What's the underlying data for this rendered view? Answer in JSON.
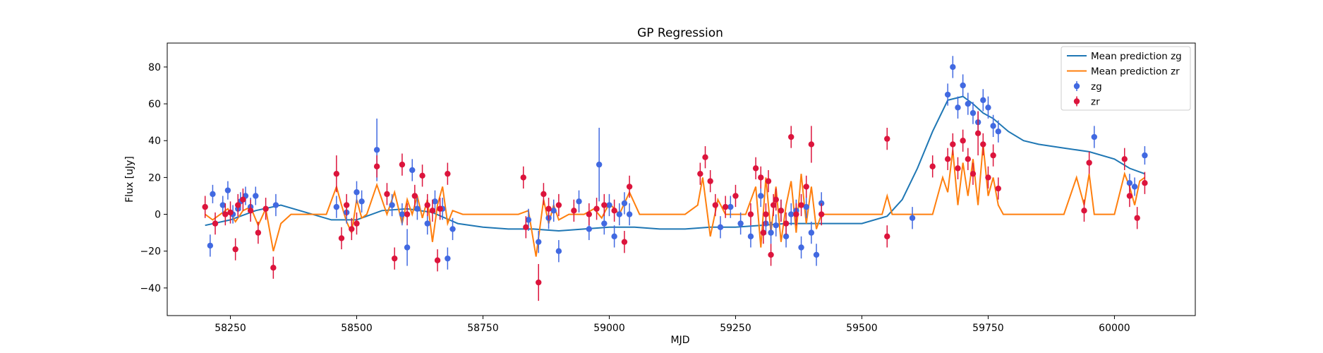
{
  "chart_data": {
    "type": "scatter",
    "title": "GP Regression",
    "xlabel": "MJD",
    "ylabel": "Flux [uJy]",
    "xlim": [
      58125,
      60160
    ],
    "ylim": [
      -55,
      93
    ],
    "xticks": [
      58250,
      58500,
      58750,
      59000,
      59250,
      59500,
      59750,
      60000
    ],
    "xtick_labels": [
      "58250",
      "58500",
      "58750",
      "59000",
      "59250",
      "59500",
      "59750",
      "60000"
    ],
    "yticks": [
      -40,
      -20,
      0,
      20,
      40,
      60,
      80
    ],
    "ytick_labels": [
      "−40",
      "−20",
      "0",
      "20",
      "40",
      "60",
      "80"
    ],
    "grid": false,
    "legend_placement": "top-right",
    "legend": [
      {
        "label": "Mean prediction zg",
        "kind": "line",
        "color": "#1f77b4"
      },
      {
        "label": "Mean prediction zr",
        "kind": "line",
        "color": "#ff7f0e"
      },
      {
        "label": "zg",
        "kind": "errorbar",
        "color": "#4169e1"
      },
      {
        "label": "zr",
        "kind": "errorbar",
        "color": "#dc143c"
      }
    ],
    "series": [
      {
        "name": "Mean prediction zg",
        "kind": "line",
        "color": "#1f77b4",
        "x": [
          58200,
          58250,
          58300,
          58350,
          58400,
          58450,
          58500,
          58550,
          58600,
          58650,
          58700,
          58750,
          58800,
          58850,
          58900,
          58950,
          59000,
          59050,
          59100,
          59150,
          59200,
          59250,
          59300,
          59350,
          59400,
          59450,
          59500,
          59550,
          59580,
          59610,
          59640,
          59670,
          59700,
          59720,
          59740,
          59760,
          59790,
          59820,
          59850,
          59900,
          59950,
          60000,
          60030,
          60060
        ],
        "y": [
          -6,
          -3,
          2,
          5,
          1,
          -3,
          -3,
          2,
          3,
          1,
          -5,
          -7,
          -8,
          -8,
          -9,
          -8,
          -7,
          -7,
          -8,
          -8,
          -7,
          -7,
          -6,
          -5,
          -5,
          -5,
          -5,
          -1,
          8,
          25,
          45,
          62,
          64,
          60,
          55,
          52,
          45,
          40,
          38,
          36,
          34,
          30,
          25,
          22
        ]
      },
      {
        "name": "Mean prediction zr",
        "kind": "line",
        "color": "#ff7f0e",
        "x": [
          58200,
          58215,
          58230,
          58245,
          58260,
          58275,
          58290,
          58305,
          58320,
          58335,
          58350,
          58370,
          58390,
          58410,
          58440,
          58460,
          58470,
          58480,
          58490,
          58500,
          58510,
          58520,
          58540,
          58550,
          58560,
          58575,
          58590,
          58600,
          58610,
          58620,
          58630,
          58640,
          58650,
          58660,
          58670,
          58680,
          58690,
          58710,
          58730,
          58760,
          58790,
          58820,
          58840,
          58855,
          58870,
          58880,
          58890,
          58900,
          58920,
          58950,
          58970,
          58985,
          59000,
          59020,
          59040,
          59060,
          59100,
          59150,
          59175,
          59185,
          59200,
          59215,
          59230,
          59250,
          59270,
          59290,
          59300,
          59310,
          59320,
          59330,
          59340,
          59350,
          59360,
          59370,
          59380,
          59390,
          59400,
          59410,
          59420,
          59440,
          59480,
          59520,
          59540,
          59550,
          59560,
          59580,
          59600,
          59620,
          59640,
          59660,
          59670,
          59680,
          59690,
          59700,
          59710,
          59720,
          59730,
          59740,
          59750,
          59760,
          59770,
          59780,
          59800,
          59850,
          59900,
          59925,
          59940,
          59950,
          59960,
          59980,
          60000,
          60020,
          60030,
          60040,
          60050,
          60060
        ],
        "y": [
          0,
          -3,
          0,
          3,
          -4,
          2,
          4,
          -6,
          3,
          -20,
          -5,
          0,
          0,
          0,
          0,
          15,
          5,
          -4,
          -10,
          8,
          -2,
          0,
          16,
          8,
          0,
          12,
          -5,
          8,
          0,
          10,
          -2,
          8,
          -15,
          5,
          15,
          -5,
          2,
          0,
          0,
          0,
          0,
          0,
          2,
          -23,
          8,
          -5,
          5,
          -3,
          0,
          0,
          3,
          -2,
          6,
          0,
          12,
          0,
          0,
          0,
          5,
          20,
          -12,
          8,
          0,
          0,
          0,
          15,
          -18,
          20,
          -10,
          15,
          -15,
          5,
          18,
          -10,
          22,
          -5,
          15,
          -8,
          0,
          0,
          0,
          0,
          0,
          10,
          0,
          0,
          0,
          0,
          0,
          20,
          12,
          35,
          5,
          28,
          10,
          30,
          5,
          38,
          10,
          20,
          5,
          0,
          0,
          0,
          0,
          20,
          5,
          22,
          0,
          0,
          0,
          22,
          15,
          5,
          18,
          20
        ]
      },
      {
        "name": "zg",
        "kind": "errorbar",
        "color": "#4169e1",
        "x": [
          58210,
          58215,
          58235,
          58245,
          58255,
          58265,
          58270,
          58280,
          58290,
          58300,
          58340,
          58460,
          58480,
          58500,
          58510,
          58540,
          58570,
          58590,
          58600,
          58610,
          58620,
          58640,
          58655,
          58670,
          58680,
          58690,
          58840,
          58860,
          58880,
          58890,
          58900,
          58940,
          58960,
          58980,
          58990,
          59000,
          59010,
          59020,
          59030,
          59040,
          59220,
          59240,
          59260,
          59280,
          59300,
          59310,
          59320,
          59330,
          59340,
          59350,
          59360,
          59370,
          59380,
          59390,
          59400,
          59410,
          59420,
          59600,
          59670,
          59680,
          59690,
          59700,
          59710,
          59720,
          59730,
          59740,
          59750,
          59760,
          59770,
          59960,
          60030,
          60040,
          60060
        ],
        "y": [
          -17,
          11,
          5,
          13,
          0,
          3,
          7,
          10,
          4,
          10,
          5,
          4,
          1,
          12,
          7,
          35,
          5,
          0,
          -18,
          24,
          3,
          -5,
          7,
          3,
          -24,
          -8,
          -3,
          -15,
          -2,
          2,
          -20,
          7,
          -8,
          27,
          -5,
          5,
          -12,
          0,
          6,
          0,
          -7,
          4,
          -5,
          -12,
          10,
          -5,
          -10,
          -6,
          2,
          -12,
          0,
          2,
          -18,
          4,
          -10,
          -22,
          6,
          -2,
          65,
          80,
          58,
          70,
          60,
          55,
          50,
          62,
          58,
          48,
          45,
          42,
          17,
          15,
          32
        ],
        "err": [
          6,
          5,
          5,
          5,
          5,
          5,
          5,
          5,
          5,
          5,
          6,
          6,
          6,
          6,
          6,
          17,
          6,
          6,
          10,
          6,
          6,
          6,
          6,
          6,
          6,
          6,
          6,
          6,
          6,
          6,
          6,
          6,
          6,
          20,
          6,
          6,
          6,
          6,
          6,
          6,
          6,
          6,
          6,
          6,
          6,
          6,
          6,
          6,
          6,
          6,
          6,
          6,
          6,
          6,
          6,
          6,
          6,
          6,
          6,
          6,
          6,
          6,
          6,
          6,
          6,
          6,
          6,
          6,
          6,
          6,
          5,
          5,
          5
        ]
      },
      {
        "name": "zr",
        "kind": "errorbar",
        "color": "#dc143c",
        "x": [
          58200,
          58220,
          58240,
          58250,
          58260,
          58265,
          58275,
          58290,
          58305,
          58320,
          58335,
          58460,
          58470,
          58480,
          58490,
          58500,
          58540,
          58560,
          58575,
          58590,
          58600,
          58615,
          58630,
          58640,
          58650,
          58660,
          58665,
          58680,
          58830,
          58835,
          58860,
          58870,
          58880,
          58900,
          58930,
          58960,
          58975,
          58990,
          59010,
          59030,
          59040,
          59180,
          59190,
          59200,
          59210,
          59230,
          59250,
          59280,
          59290,
          59300,
          59305,
          59310,
          59315,
          59320,
          59325,
          59330,
          59340,
          59350,
          59360,
          59370,
          59380,
          59390,
          59400,
          59420,
          59550,
          59550,
          59640,
          59670,
          59680,
          59690,
          59700,
          59710,
          59720,
          59730,
          59740,
          59750,
          59760,
          59770,
          59940,
          59950,
          60020,
          60030,
          60045,
          60060
        ],
        "y": [
          4,
          -5,
          0,
          1,
          -19,
          5,
          8,
          2,
          -10,
          3,
          -29,
          22,
          -13,
          5,
          -8,
          -5,
          26,
          11,
          -24,
          27,
          0,
          10,
          21,
          5,
          2,
          -25,
          3,
          22,
          20,
          -7,
          -37,
          11,
          3,
          5,
          2,
          0,
          3,
          5,
          2,
          -15,
          15,
          22,
          31,
          18,
          5,
          4,
          10,
          0,
          25,
          20,
          -10,
          0,
          18,
          -22,
          5,
          8,
          2,
          -5,
          42,
          0,
          5,
          15,
          38,
          0,
          41,
          -12,
          26,
          30,
          38,
          25,
          40,
          30,
          22,
          44,
          38,
          20,
          32,
          14,
          2,
          28,
          30,
          10,
          -2,
          17
        ],
        "err": [
          6,
          6,
          6,
          6,
          6,
          6,
          6,
          6,
          6,
          6,
          6,
          10,
          6,
          6,
          6,
          6,
          6,
          6,
          6,
          6,
          6,
          6,
          6,
          6,
          6,
          6,
          6,
          6,
          6,
          6,
          10,
          6,
          6,
          6,
          6,
          6,
          6,
          6,
          6,
          6,
          6,
          6,
          6,
          6,
          6,
          6,
          6,
          6,
          6,
          6,
          6,
          6,
          6,
          6,
          6,
          6,
          6,
          6,
          6,
          6,
          6,
          6,
          10,
          6,
          6,
          6,
          6,
          6,
          6,
          6,
          6,
          6,
          6,
          12,
          6,
          6,
          6,
          6,
          6,
          6,
          6,
          6,
          6,
          6
        ]
      }
    ]
  }
}
